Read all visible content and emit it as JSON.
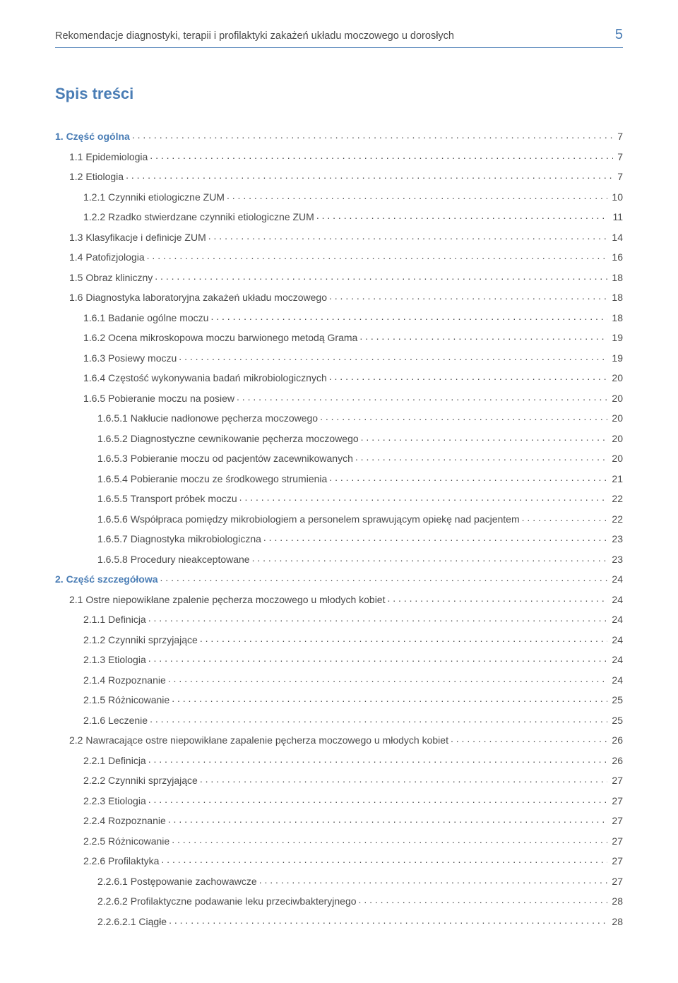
{
  "header": {
    "title": "Rekomendacje diagnostyki, terapii i profilaktyki zakażeń układu moczowego u dorosłych",
    "page_number": "5"
  },
  "toc_heading": "Spis treści",
  "colors": {
    "accent": "#4a7db5",
    "text": "#4a4a4a",
    "background": "#ffffff"
  },
  "typography": {
    "body_fontsize": 14,
    "heading_fontsize": 22,
    "pagenum_fontsize": 20,
    "header_fontsize": 14.5
  },
  "toc": [
    {
      "label": "1. Część ogólna",
      "page": "7",
      "level": 0,
      "chapter": true
    },
    {
      "label": "1.1 Epidemiologia",
      "page": "7",
      "level": 1
    },
    {
      "label": "1.2 Etiologia",
      "page": "7",
      "level": 1
    },
    {
      "label": "1.2.1 Czynniki etiologiczne ZUM",
      "page": "10",
      "level": 2
    },
    {
      "label": "1.2.2 Rzadko stwierdzane czynniki etiologiczne ZUM",
      "page": "11",
      "level": 2
    },
    {
      "label": "1.3 Klasyfikacje i definicje ZUM",
      "page": "14",
      "level": 1
    },
    {
      "label": "1.4 Patofizjologia",
      "page": "16",
      "level": 1
    },
    {
      "label": "1.5 Obraz kliniczny",
      "page": "18",
      "level": 1
    },
    {
      "label": "1.6 Diagnostyka laboratoryjna zakażeń układu moczowego",
      "page": "18",
      "level": 1
    },
    {
      "label": "1.6.1 Badanie ogólne moczu",
      "page": "18",
      "level": 2
    },
    {
      "label": "1.6.2 Ocena mikroskopowa moczu barwionego metodą Grama",
      "page": "19",
      "level": 2
    },
    {
      "label": "1.6.3 Posiewy moczu",
      "page": "19",
      "level": 2
    },
    {
      "label": "1.6.4 Częstość wykonywania badań mikrobiologicznych",
      "page": "20",
      "level": 2
    },
    {
      "label": "1.6.5 Pobieranie moczu na posiew",
      "page": "20",
      "level": 2
    },
    {
      "label": "1.6.5.1 Nakłucie nadłonowe pęcherza moczowego",
      "page": "20",
      "level": 3
    },
    {
      "label": "1.6.5.2 Diagnostyczne cewnikowanie pęcherza moczowego",
      "page": "20",
      "level": 3
    },
    {
      "label": "1.6.5.3 Pobieranie moczu od pacjentów zacewnikowanych",
      "page": "20",
      "level": 3
    },
    {
      "label": "1.6.5.4 Pobieranie moczu ze środkowego strumienia",
      "page": "21",
      "level": 3
    },
    {
      "label": "1.6.5.5 Transport próbek moczu",
      "page": "22",
      "level": 3
    },
    {
      "label": "1.6.5.6 Współpraca pomiędzy mikrobiologiem a personelem sprawującym opiekę nad pacjentem",
      "page": "22",
      "level": 3
    },
    {
      "label": "1.6.5.7 Diagnostyka mikrobiologiczna",
      "page": "23",
      "level": 3
    },
    {
      "label": "1.6.5.8 Procedury nieakceptowane",
      "page": "23",
      "level": 3
    },
    {
      "label": "2. Część szczegółowa",
      "page": "24",
      "level": 0,
      "chapter": true
    },
    {
      "label": "2.1 Ostre niepowikłane zpalenie pęcherza moczowego u młodych kobiet",
      "page": "24",
      "level": 1
    },
    {
      "label": "2.1.1 Definicja",
      "page": "24",
      "level": 2
    },
    {
      "label": "2.1.2 Czynniki sprzyjające",
      "page": "24",
      "level": 2
    },
    {
      "label": "2.1.3 Etiologia",
      "page": "24",
      "level": 2
    },
    {
      "label": "2.1.4 Rozpoznanie",
      "page": "24",
      "level": 2
    },
    {
      "label": "2.1.5 Różnicowanie",
      "page": "25",
      "level": 2
    },
    {
      "label": "2.1.6 Leczenie",
      "page": "25",
      "level": 2
    },
    {
      "label": "2.2 Nawracające ostre niepowikłane zapalenie pęcherza moczowego u młodych kobiet",
      "page": "26",
      "level": 1
    },
    {
      "label": "2.2.1 Definicja",
      "page": "26",
      "level": 2
    },
    {
      "label": "2.2.2 Czynniki sprzyjające",
      "page": "27",
      "level": 2
    },
    {
      "label": "2.2.3 Etiologia",
      "page": "27",
      "level": 2
    },
    {
      "label": "2.2.4 Rozpoznanie",
      "page": "27",
      "level": 2
    },
    {
      "label": "2.2.5 Różnicowanie",
      "page": "27",
      "level": 2
    },
    {
      "label": "2.2.6 Profilaktyka",
      "page": "27",
      "level": 2
    },
    {
      "label": "2.2.6.1 Postępowanie zachowawcze",
      "page": "27",
      "level": 3
    },
    {
      "label": "2.2.6.2 Profilaktyczne podawanie leku przeciwbakteryjnego",
      "page": "28",
      "level": 3
    },
    {
      "label": "2.2.6.2.1 Ciągłe",
      "page": "28",
      "level": 3
    }
  ]
}
